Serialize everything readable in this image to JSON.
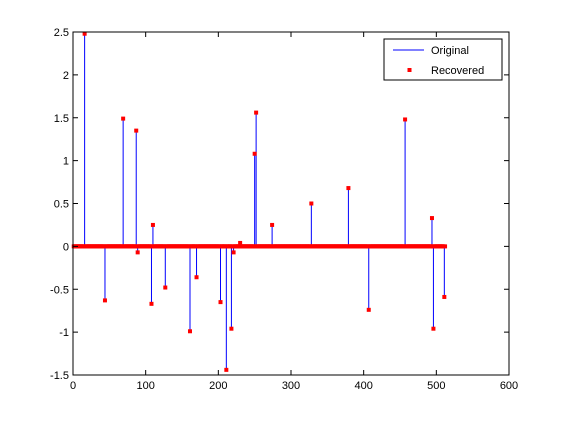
{
  "chart_data": {
    "type": "line",
    "title": "",
    "xlabel": "",
    "ylabel": "",
    "xlim": [
      0,
      600
    ],
    "ylim": [
      -1.5,
      2.5
    ],
    "xticks": [
      0,
      100,
      200,
      300,
      400,
      500,
      600
    ],
    "yticks": [
      -1.5,
      -1,
      -0.5,
      0,
      0.5,
      1,
      1.5,
      2,
      2.5
    ],
    "xtick_labels": [
      "0",
      "100",
      "200",
      "300",
      "400",
      "500",
      "600"
    ],
    "ytick_labels": [
      "-1.5",
      "-1",
      "-0.5",
      "0",
      "0.5",
      "1",
      "1.5",
      "2",
      "2.5"
    ],
    "grid": false,
    "legend_position": "top-right",
    "series": [
      {
        "name": "Original",
        "style": "stem-line",
        "color": "#0000ff",
        "x_range": [
          1,
          512
        ],
        "spikes": [
          {
            "x": 16,
            "y": 2.48
          },
          {
            "x": 44,
            "y": -0.63
          },
          {
            "x": 69,
            "y": 1.49
          },
          {
            "x": 87,
            "y": 1.35
          },
          {
            "x": 89,
            "y": -0.07
          },
          {
            "x": 108,
            "y": -0.67
          },
          {
            "x": 110,
            "y": 0.25
          },
          {
            "x": 127,
            "y": -0.48
          },
          {
            "x": 161,
            "y": -0.99
          },
          {
            "x": 170,
            "y": -0.36
          },
          {
            "x": 203,
            "y": -0.65
          },
          {
            "x": 211,
            "y": -1.44
          },
          {
            "x": 218,
            "y": -0.96
          },
          {
            "x": 221,
            "y": -0.07
          },
          {
            "x": 230,
            "y": 0.04
          },
          {
            "x": 250,
            "y": 1.08
          },
          {
            "x": 252,
            "y": 1.56
          },
          {
            "x": 274,
            "y": 0.25
          },
          {
            "x": 328,
            "y": 0.5
          },
          {
            "x": 379,
            "y": 0.68
          },
          {
            "x": 407,
            "y": -0.74
          },
          {
            "x": 457,
            "y": 1.48
          },
          {
            "x": 494,
            "y": 0.33
          },
          {
            "x": 496,
            "y": -0.96
          },
          {
            "x": 511,
            "y": -0.59
          }
        ]
      },
      {
        "name": "Recovered",
        "style": "markers",
        "color": "#ff0000",
        "x_range": [
          1,
          512
        ],
        "spikes": [
          {
            "x": 16,
            "y": 2.48
          },
          {
            "x": 44,
            "y": -0.63
          },
          {
            "x": 69,
            "y": 1.49
          },
          {
            "x": 87,
            "y": 1.35
          },
          {
            "x": 89,
            "y": -0.07
          },
          {
            "x": 108,
            "y": -0.67
          },
          {
            "x": 110,
            "y": 0.25
          },
          {
            "x": 127,
            "y": -0.48
          },
          {
            "x": 161,
            "y": -0.99
          },
          {
            "x": 170,
            "y": -0.36
          },
          {
            "x": 203,
            "y": -0.65
          },
          {
            "x": 211,
            "y": -1.44
          },
          {
            "x": 218,
            "y": -0.96
          },
          {
            "x": 221,
            "y": -0.07
          },
          {
            "x": 230,
            "y": 0.04
          },
          {
            "x": 250,
            "y": 1.08
          },
          {
            "x": 252,
            "y": 1.56
          },
          {
            "x": 274,
            "y": 0.25
          },
          {
            "x": 328,
            "y": 0.5
          },
          {
            "x": 379,
            "y": 0.68
          },
          {
            "x": 407,
            "y": -0.74
          },
          {
            "x": 457,
            "y": 1.48
          },
          {
            "x": 494,
            "y": 0.33
          },
          {
            "x": 496,
            "y": -0.96
          },
          {
            "x": 511,
            "y": -0.59
          }
        ]
      }
    ]
  }
}
